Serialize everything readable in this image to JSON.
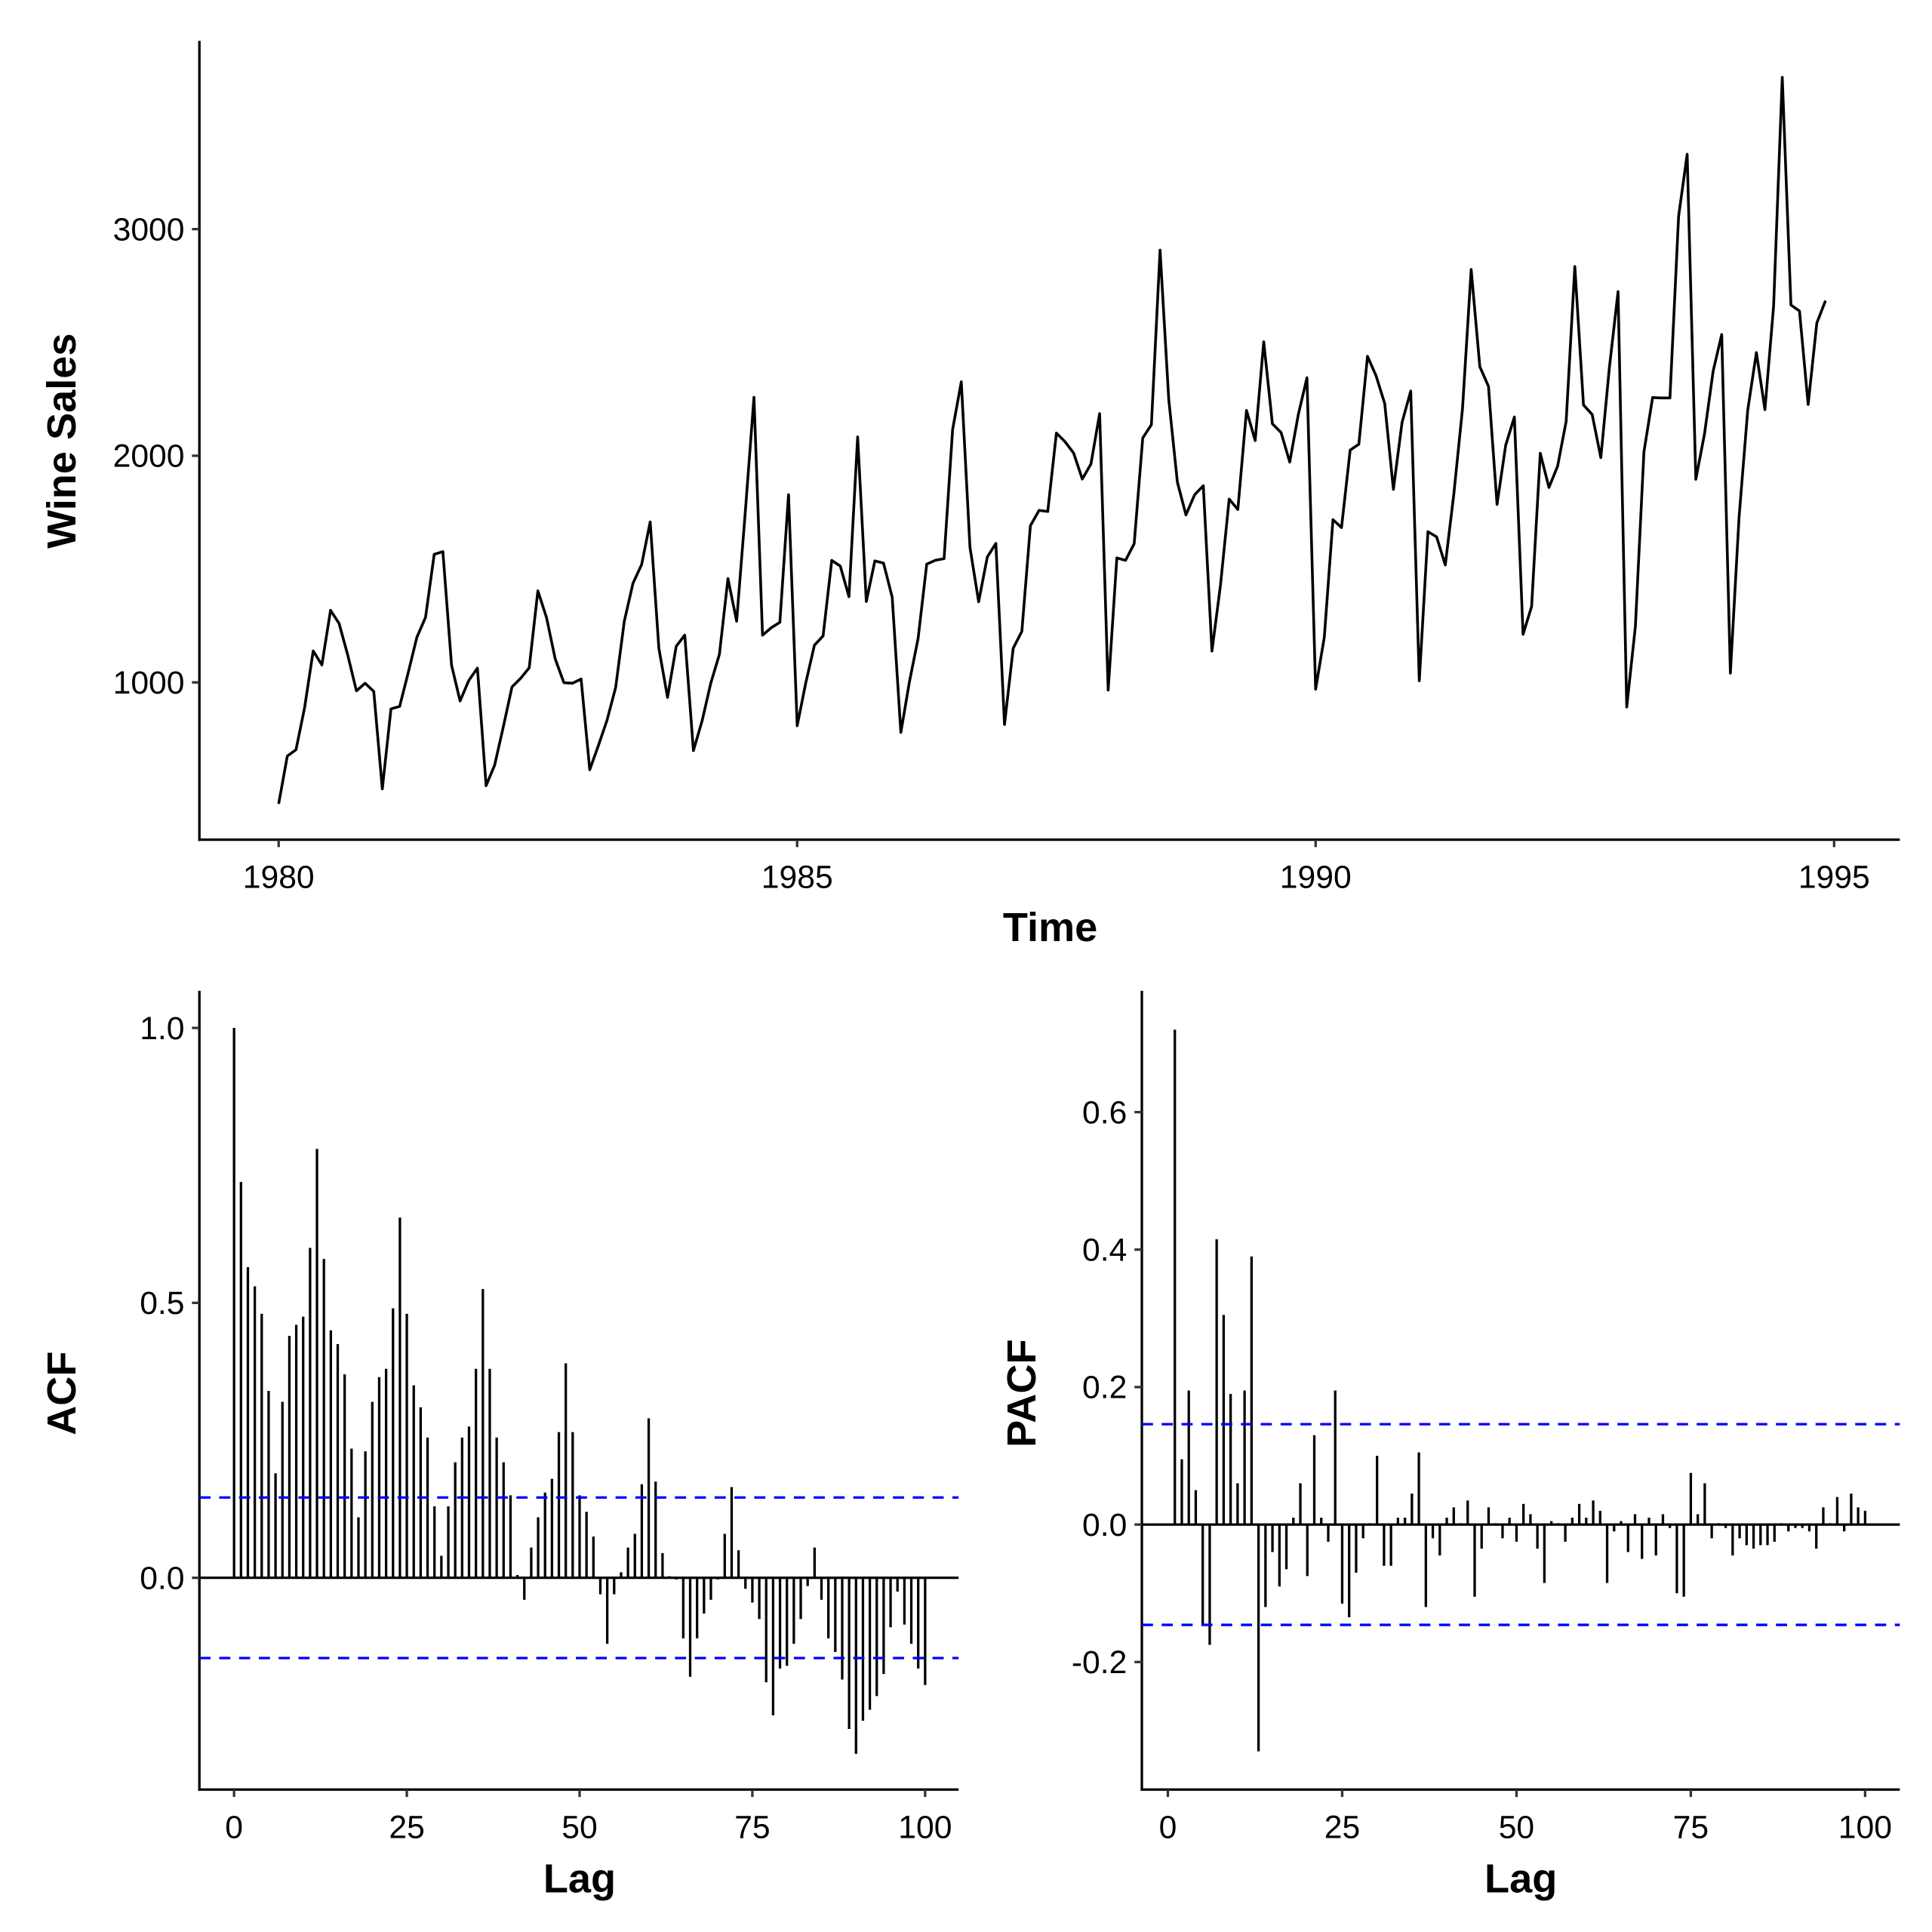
{
  "chart_data": [
    {
      "type": "line",
      "title": "",
      "xlabel": "Time",
      "ylabel": "Wine Sales",
      "start": [
        1980,
        1
      ],
      "frequency": 12,
      "xticks": [
        "1980",
        "1985",
        "1990",
        "1995"
      ],
      "yticks": [
        "1000",
        "2000",
        "3000"
      ],
      "xlim": [
        1979.8,
        1995.3
      ],
      "ylim": [
        390,
        3890
      ],
      "line_color": "#000000",
      "values": [
        464,
        675,
        703,
        887,
        1139,
        1077,
        1318,
        1260,
        1120,
        963,
        996,
        960,
        530,
        883,
        894,
        1045,
        1199,
        1287,
        1565,
        1577,
        1076,
        918,
        1008,
        1063,
        544,
        635,
        804,
        980,
        1018,
        1064,
        1404,
        1286,
        1104,
        999,
        996,
        1015,
        615,
        722,
        832,
        977,
        1270,
        1437,
        1520,
        1708,
        1151,
        934,
        1159,
        1209,
        699,
        830,
        996,
        1124,
        1458,
        1270,
        1753,
        2258,
        1208,
        1241,
        1265,
        1828,
        809,
        997,
        1164,
        1205,
        1538,
        1513,
        1378,
        2083,
        1357,
        1536,
        1526,
        1376,
        779,
        1005,
        1193,
        1522,
        1539,
        1546,
        2116,
        2326,
        1596,
        1356,
        1553,
        1613,
        814,
        1150,
        1225,
        1691,
        1759,
        1754,
        2100,
        2062,
        2012,
        1897,
        1964,
        2186,
        966,
        1549,
        1538,
        1612,
        2078,
        2137,
        2907,
        2249,
        1883,
        1739,
        1828,
        1868,
        1138,
        1430,
        1809,
        1763,
        2200,
        2067,
        2503,
        2141,
        2103,
        1972,
        2181,
        2344,
        970,
        1199,
        1718,
        1683,
        2025,
        2051,
        2439,
        2353,
        2230,
        1852,
        2147,
        2286,
        1007,
        1665,
        1642,
        1518,
        1831,
        2207,
        2822,
        2393,
        2306,
        1785,
        2047,
        2171,
        1212,
        1335,
        2011,
        1860,
        1954,
        2152,
        2835,
        2224,
        2182,
        1992,
        2389,
        2724,
        891,
        1247,
        2017,
        2257,
        2255,
        2255,
        3057,
        3330,
        1896,
        2096,
        2374,
        2535,
        1041,
        1728,
        2201,
        2455,
        2204,
        2660,
        3670,
        2665,
        2639,
        2226,
        2586,
        2684
      ]
    },
    {
      "type": "bar",
      "title": "",
      "xlabel": "Lag",
      "ylabel": "ACF",
      "xticks": [
        "0",
        "25",
        "50",
        "75",
        "100"
      ],
      "yticks": [
        "0.0",
        "0.5",
        "1.0"
      ],
      "ylim": [
        -0.38,
        1.07
      ],
      "confidence_bound": 0.146,
      "bound_color": "#0000FF",
      "lag_start": 0,
      "values": [
        1.0,
        0.72,
        0.565,
        0.53,
        0.48,
        0.34,
        0.19,
        0.32,
        0.44,
        0.46,
        0.475,
        0.6,
        0.78,
        0.58,
        0.45,
        0.425,
        0.37,
        0.235,
        0.11,
        0.23,
        0.32,
        0.365,
        0.38,
        0.49,
        0.655,
        0.48,
        0.35,
        0.31,
        0.255,
        0.13,
        0.04,
        0.13,
        0.21,
        0.255,
        0.275,
        0.38,
        0.525,
        0.38,
        0.255,
        0.21,
        0.15,
        0.005,
        -0.04,
        0.055,
        0.11,
        0.155,
        0.18,
        0.265,
        0.39,
        0.265,
        0.15,
        0.12,
        0.075,
        -0.03,
        -0.12,
        -0.03,
        0.01,
        0.055,
        0.08,
        0.17,
        0.29,
        0.175,
        0.045,
        0.003,
        -0.003,
        -0.11,
        -0.18,
        -0.11,
        -0.065,
        -0.04,
        -0.003,
        0.08,
        0.165,
        0.05,
        -0.02,
        -0.045,
        -0.075,
        -0.19,
        -0.25,
        -0.165,
        -0.16,
        -0.12,
        -0.075,
        -0.015,
        0.055,
        -0.04,
        -0.11,
        -0.135,
        -0.185,
        -0.275,
        -0.32,
        -0.26,
        -0.24,
        -0.215,
        -0.175,
        -0.09,
        -0.025,
        -0.085,
        -0.12,
        -0.165,
        -0.195
      ]
    },
    {
      "type": "bar",
      "title": "",
      "xlabel": "Lag",
      "ylabel": "PACF",
      "xticks": [
        "0",
        "25",
        "50",
        "75",
        "100"
      ],
      "yticks": [
        "-0.2",
        "0.0",
        "0.2",
        "0.4",
        "0.6"
      ],
      "ylim": [
        -0.38,
        0.77
      ],
      "confidence_bound": 0.146,
      "bound_color": "#0000FF",
      "lag_start": 1,
      "values": [
        0.72,
        0.095,
        0.195,
        0.05,
        -0.145,
        -0.175,
        0.415,
        0.305,
        0.19,
        0.06,
        0.195,
        0.39,
        -0.33,
        -0.12,
        -0.04,
        -0.09,
        -0.065,
        0.01,
        0.06,
        -0.075,
        0.13,
        0.01,
        -0.025,
        0.195,
        -0.115,
        -0.135,
        -0.07,
        -0.02,
        0.002,
        0.1,
        -0.06,
        -0.06,
        0.01,
        0.01,
        0.045,
        0.105,
        -0.12,
        -0.02,
        -0.045,
        0.01,
        0.025,
        0.002,
        0.035,
        -0.105,
        -0.035,
        0.025,
        0.002,
        -0.02,
        0.01,
        -0.025,
        0.03,
        0.015,
        -0.035,
        -0.085,
        0.005,
        0.002,
        -0.025,
        0.01,
        0.03,
        0.01,
        0.035,
        0.02,
        -0.085,
        -0.01,
        0.005,
        -0.04,
        0.015,
        -0.05,
        0.01,
        -0.045,
        0.015,
        -0.005,
        -0.1,
        -0.105,
        0.075,
        0.015,
        0.06,
        -0.02,
        0.002,
        -0.005,
        -0.045,
        -0.02,
        -0.03,
        -0.035,
        -0.03,
        -0.03,
        -0.025,
        0.002,
        -0.01,
        -0.005,
        -0.005,
        -0.01,
        -0.035,
        0.025,
        0.002,
        0.04,
        -0.01,
        0.045,
        0.025,
        0.02
      ]
    }
  ]
}
